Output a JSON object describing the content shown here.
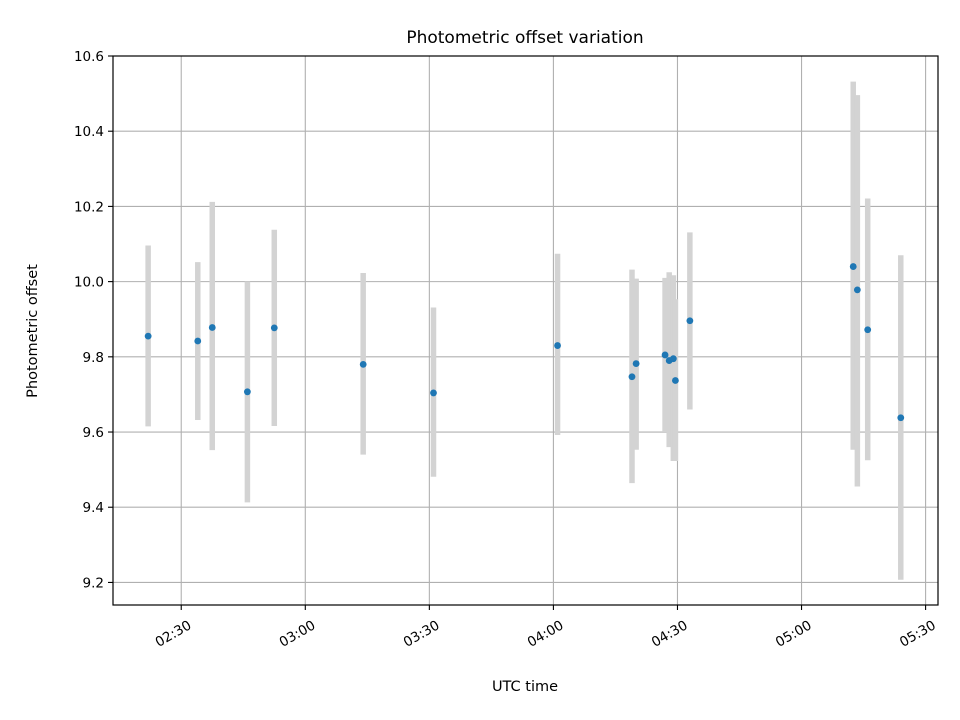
{
  "chart_data": {
    "type": "scatter",
    "title": "Photometric offset variation",
    "xlabel": "UTC time",
    "ylabel": "Photometric offset",
    "x_ticks": [
      "02:30",
      "03:00",
      "03:30",
      "04:00",
      "04:30",
      "05:00",
      "05:30"
    ],
    "y_ticks": [
      "9.2",
      "9.4",
      "9.6",
      "9.8",
      "10.0",
      "10.2",
      "10.4",
      "10.6"
    ],
    "xlim": [
      "02:13:30",
      "05:33:00"
    ],
    "ylim": [
      9.14,
      10.6
    ],
    "grid": true,
    "errorbar_color": "#d3d3d3",
    "point_color": "#1f77b4",
    "series": [
      {
        "x": [
          "02:22:00",
          "02:34:00",
          "02:37:30",
          "02:46:00",
          "02:52:30",
          "03:14:00",
          "03:31:00",
          "04:01:00",
          "04:19:00",
          "04:20:00",
          "04:27:00",
          "04:28:00",
          "04:29:00",
          "04:29:30",
          "04:33:00",
          "05:12:30",
          "05:13:30",
          "05:16:00",
          "05:24:00"
        ],
        "y": [
          9.855,
          9.842,
          9.878,
          9.707,
          9.877,
          9.78,
          9.704,
          9.83,
          9.747,
          9.782,
          9.805,
          9.79,
          9.795,
          9.737,
          9.896,
          10.04,
          9.978,
          9.872,
          9.638
        ],
        "yerr_low": [
          9.615,
          9.632,
          9.552,
          9.413,
          9.616,
          9.54,
          9.481,
          9.592,
          9.464,
          9.553,
          9.6,
          9.56,
          9.523,
          9.523,
          9.66,
          9.553,
          9.455,
          9.525,
          9.207
        ],
        "yerr_high": [
          10.096,
          10.052,
          10.212,
          10.0,
          10.138,
          10.023,
          9.931,
          10.074,
          10.032,
          10.008,
          10.01,
          10.025,
          10.017,
          9.953,
          10.131,
          10.532,
          10.496,
          10.221,
          10.07
        ]
      }
    ]
  }
}
